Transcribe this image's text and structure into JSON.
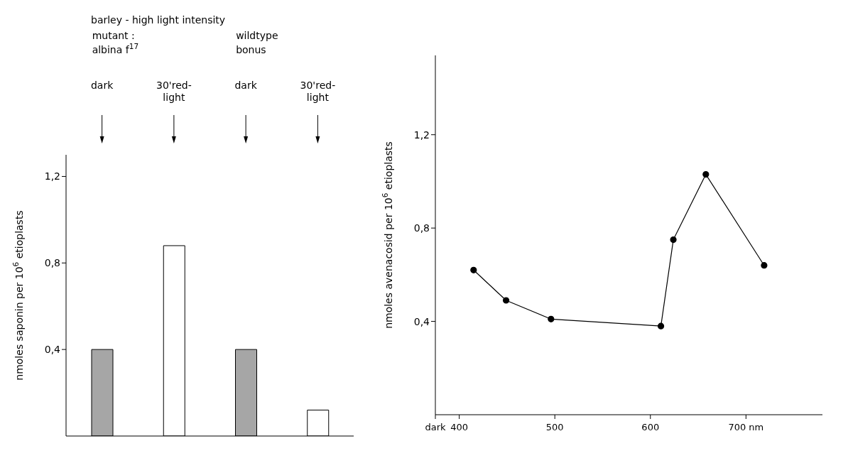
{
  "chart_data": [
    {
      "type": "bar",
      "title": "barley - high light intensity",
      "ylabel": "nmoles saponin per 10$^{6}$ etioplasts",
      "categories": [
        "dark",
        "30'red-light",
        "dark",
        "30'red-light"
      ],
      "values": [
        0.4,
        0.88,
        0.4,
        0.12
      ],
      "colors": [
        "#a6a6a6",
        "#ffffff",
        "#a6a6a6",
        "#ffffff"
      ],
      "annotations": [
        "mutant : albina f$^{17}$",
        "wildtype bonus"
      ],
      "ylim": [
        0,
        1.3
      ],
      "yticks": [
        {
          "value": 0.4,
          "label": "0,4"
        },
        {
          "value": 0.8,
          "label": "0,8"
        },
        {
          "value": 1.2,
          "label": "1,2"
        }
      ],
      "grid": false
    },
    {
      "type": "line",
      "ylabel": "nmoles avenacosid per 10$^{6}$ etioplasts",
      "x": [
        415,
        449,
        496,
        611,
        624,
        658,
        719
      ],
      "values": [
        0.62,
        0.49,
        0.41,
        0.38,
        0.75,
        1.03,
        0.64
      ],
      "color": "#000000",
      "marker": "circle",
      "xlim": [
        375,
        780
      ],
      "xticks": [
        {
          "value": 375,
          "label": "dark"
        },
        400,
        500,
        600,
        {
          "value": 700,
          "label": "700 nm"
        }
      ],
      "ylim": [
        0,
        1.54
      ],
      "yticks": [
        {
          "value": 0.4,
          "label": "0,4"
        },
        {
          "value": 0.8,
          "label": "0,8"
        },
        {
          "value": 1.2,
          "label": "1,2"
        }
      ],
      "grid": false
    }
  ]
}
